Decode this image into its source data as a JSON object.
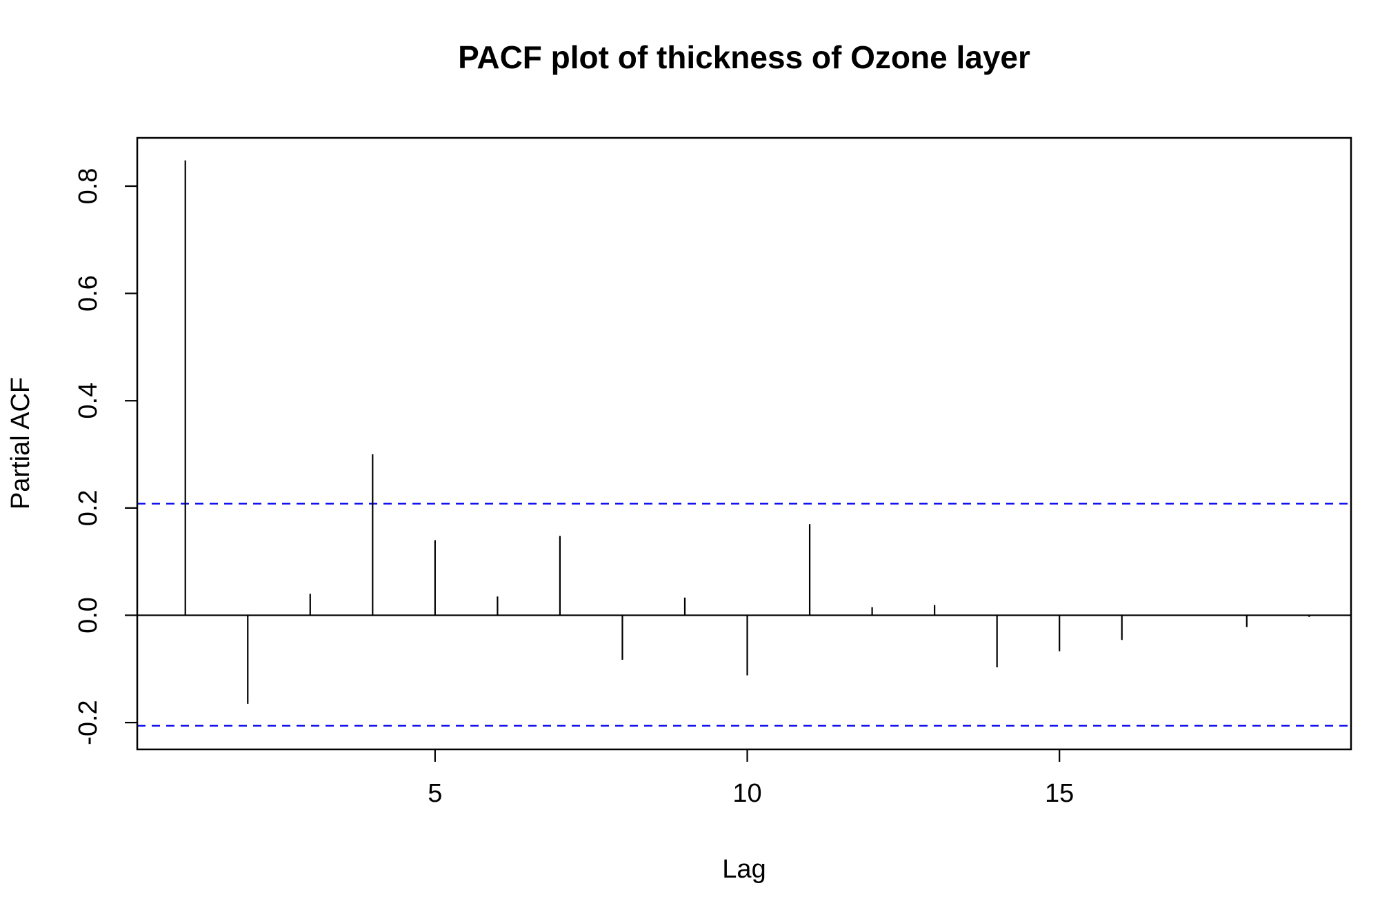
{
  "chart_data": {
    "type": "bar",
    "title": "PACF plot of thickness of Ozone layer",
    "xlabel": "Lag",
    "ylabel": "Partial ACF",
    "xlim": [
      0.23,
      19.67
    ],
    "ylim": [
      -0.25,
      0.89
    ],
    "x_ticks": [
      5,
      10,
      15
    ],
    "y_ticks": [
      -0.2,
      0.0,
      0.2,
      0.4,
      0.6,
      0.8
    ],
    "y_tick_labels": [
      "-0.2",
      "0.0",
      "0.2",
      "0.4",
      "0.6",
      "0.8"
    ],
    "x_tick_labels": [
      "5",
      "10",
      "15"
    ],
    "lags": [
      1,
      2,
      3,
      4,
      5,
      6,
      7,
      8,
      9,
      10,
      11,
      12,
      13,
      14,
      15,
      16,
      17,
      18,
      19
    ],
    "values": [
      0.848,
      -0.165,
      0.04,
      0.3,
      0.14,
      0.035,
      0.148,
      -0.083,
      0.033,
      -0.112,
      0.17,
      0.015,
      0.019,
      -0.097,
      -0.067,
      -0.046,
      0.0,
      -0.022,
      -0.003
    ],
    "confidence_bounds": [
      0.208,
      -0.206
    ],
    "confidence_line_color": "#0000ee",
    "bar_color": "#000000",
    "grid": false,
    "legend": "none"
  }
}
